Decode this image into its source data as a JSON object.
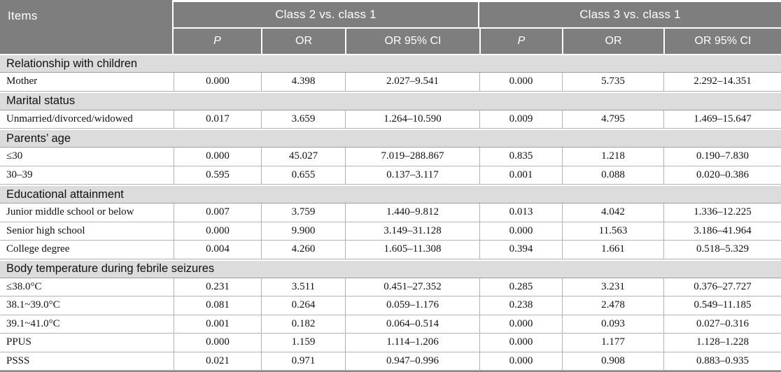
{
  "table": {
    "items_header": "Items",
    "groups": [
      {
        "label": "Class 2 vs. class 1"
      },
      {
        "label": "Class 3 vs. class 1"
      }
    ],
    "subheaders": [
      {
        "label": "P",
        "italic": true
      },
      {
        "label": "OR",
        "italic": false
      },
      {
        "label": "OR 95% CI",
        "italic": false
      },
      {
        "label": "P",
        "italic": true
      },
      {
        "label": "OR",
        "italic": false
      },
      {
        "label": "OR 95% CI",
        "italic": false
      }
    ],
    "sections": [
      {
        "title": "Relationship with children",
        "rows": [
          {
            "item": "Mother",
            "class2": [
              "0.000",
              "4.398",
              "2.027–9.541"
            ],
            "class3": [
              "0.000",
              "5.735",
              "2.292–14.351"
            ]
          }
        ]
      },
      {
        "title": "Marital status",
        "rows": [
          {
            "item": "Unmarried/divorced/widowed",
            "class2": [
              "0.017",
              "3.659",
              "1.264–10.590"
            ],
            "class3": [
              "0.009",
              "4.795",
              "1.469–15.647"
            ]
          }
        ]
      },
      {
        "title": "Parents’ age",
        "rows": [
          {
            "item": "≤30",
            "class2": [
              "0.000",
              "45.027",
              "7.019–288.867"
            ],
            "class3": [
              "0.835",
              "1.218",
              "0.190–7.830"
            ]
          },
          {
            "item": "30–39",
            "class2": [
              "0.595",
              "0.655",
              "0.137–3.117"
            ],
            "class3": [
              "0.001",
              "0.088",
              "0.020–0.386"
            ]
          }
        ]
      },
      {
        "title": "Educational attainment",
        "rows": [
          {
            "item": "Junior middle school or below",
            "class2": [
              "0.007",
              "3.759",
              "1.440–9.812"
            ],
            "class3": [
              "0.013",
              "4.042",
              "1.336–12.225"
            ]
          },
          {
            "item": "Senior high school",
            "class2": [
              "0.000",
              "9.900",
              "3.149–31.128"
            ],
            "class3": [
              "0.000",
              "11.563",
              "3.186–41.964"
            ]
          },
          {
            "item": "College degree",
            "class2": [
              "0.004",
              "4.260",
              "1.605–11.308"
            ],
            "class3": [
              "0.394",
              "1.661",
              "0.518–5.329"
            ]
          }
        ]
      },
      {
        "title": "Body temperature during febrile seizures",
        "rows": [
          {
            "item": "≤38.0°C",
            "class2": [
              "0.231",
              "3.511",
              "0.451–27.352"
            ],
            "class3": [
              "0.285",
              "3.231",
              "0.376–27.727"
            ]
          },
          {
            "item": "38.1~39.0°C",
            "class2": [
              "0.081",
              "0.264",
              "0.059–1.176"
            ],
            "class3": [
              "0.238",
              "2.478",
              "0.549–11.185"
            ]
          },
          {
            "item": "39.1~41.0°C",
            "class2": [
              "0.001",
              "0.182",
              "0.064–0.514"
            ],
            "class3": [
              "0.000",
              "0.093",
              "0.027–0.316"
            ]
          },
          {
            "item": "PPUS",
            "class2": [
              "0.000",
              "1.159",
              "1.114–1.206"
            ],
            "class3": [
              "0.000",
              "1.177",
              "1.128–1.228"
            ]
          },
          {
            "item": "PSSS",
            "class2": [
              "0.021",
              "0.971",
              "0.947–0.996"
            ],
            "class3": [
              "0.000",
              "0.908",
              "0.883–0.935"
            ]
          }
        ]
      }
    ],
    "colors": {
      "header_bg": "#7e7e7e",
      "header_text": "#ffffff",
      "section_bg": "#dcdcdc",
      "row_border": "#b3b3b3"
    }
  }
}
